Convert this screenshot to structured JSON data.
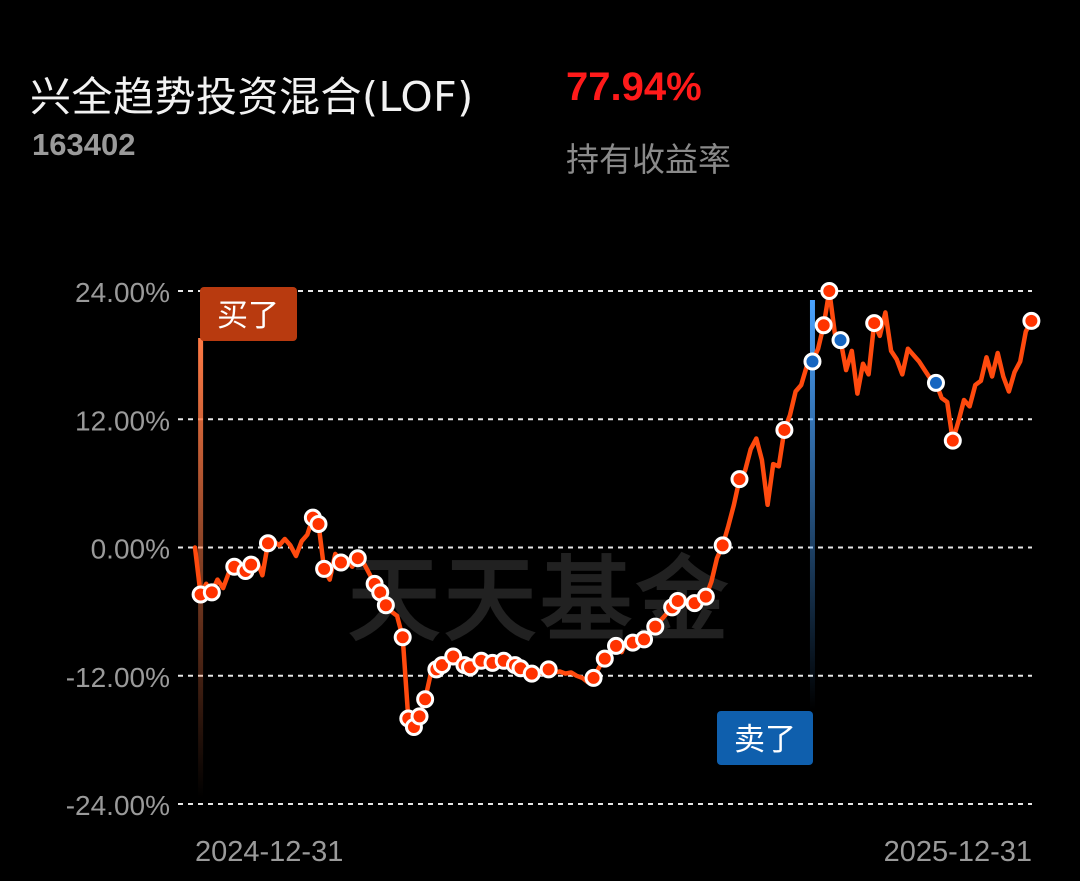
{
  "fund": {
    "name": "兴全趋势投资混合(LOF)",
    "code": "163402",
    "holding_return": "77.94%",
    "holding_return_label": "持有收益率"
  },
  "watermark": "天天基金",
  "markers": {
    "buy_label": "买了",
    "sell_label": "卖了"
  },
  "colors": {
    "line": "#ff4a0e",
    "buy_dot": "#ff3300",
    "sell_dot": "#1565c0",
    "buy_badge": "#b83a0f",
    "sell_badge": "#0f5fad",
    "return_positive": "#ff1a1a"
  },
  "chart_data": {
    "type": "line",
    "x_labels": [
      "2024-12-31",
      "2025-12-31"
    ],
    "y_ticks": [
      "24.00%",
      "12.00%",
      "0.00%",
      "-12.00%",
      "-24.00%"
    ],
    "ylim": [
      -24,
      24
    ],
    "grid": "horizontal-dashed",
    "series": [
      {
        "values": [
          0,
          -4.4,
          -3.4,
          -4.2,
          -3.0,
          -3.8,
          -2.4,
          -1.8,
          -2.4,
          -2.2,
          -1.6,
          -1.2,
          -2.6,
          0.4,
          0.6,
          0.2,
          0.8,
          0.2,
          -0.8,
          0.6,
          1.2,
          2.8,
          2.2,
          -2.0,
          -3.0,
          -0.6,
          -1.4,
          -1.0,
          -1.8,
          -1.0,
          -1.4,
          -2.4,
          -3.4,
          -4.2,
          -5.4,
          -6.0,
          -6.4,
          -8.4,
          -16.0,
          -16.8,
          -15.8,
          -14.2,
          -11.8,
          -11.4,
          -11.0,
          -10.8,
          -10.2,
          -10.6,
          -11.0,
          -11.2,
          -10.8,
          -10.6,
          -10.4,
          -10.8,
          -11.0,
          -10.6,
          -11.2,
          -11.0,
          -11.3,
          -11.6,
          -11.8,
          -11.6,
          -11.8,
          -11.4,
          -11.7,
          -11.6,
          -11.8,
          -11.7,
          -12.0,
          -12.2,
          -12.6,
          -12.2,
          -11.2,
          -10.4,
          -9.8,
          -9.2,
          -9.8,
          -8.6,
          -8.9,
          -8.4,
          -8.6,
          -8.0,
          -7.4,
          -6.8,
          -6.2,
          -5.6,
          -5.0,
          -4.6,
          -5.6,
          -5.2,
          -4.8,
          -4.6,
          -3.2,
          -1.0,
          0.2,
          2.0,
          4.0,
          6.4,
          7.2,
          9.2,
          10.2,
          8.2,
          4.0,
          7.8,
          7.6,
          11.0,
          12.4,
          14.6,
          15.2,
          17.0,
          17.4,
          18.6,
          20.8,
          24.0,
          20.0,
          19.4,
          16.6,
          18.4,
          14.4,
          17.2,
          16.2,
          21.0,
          19.8,
          22.0,
          18.4,
          17.6,
          16.2,
          18.6,
          18.0,
          17.4,
          16.6,
          15.8,
          15.4,
          14.0,
          13.6,
          10.0,
          11.8,
          13.8,
          13.2,
          15.2,
          15.6,
          17.8,
          16.0,
          18.2,
          16.0,
          14.6,
          16.4,
          17.4,
          20.2,
          21.2,
          20.8
        ]
      }
    ],
    "buy_points": [
      1,
      3,
      7,
      9,
      10,
      13,
      21,
      22,
      23,
      26,
      29,
      32,
      33,
      34,
      37,
      38,
      39,
      40,
      41,
      43,
      44,
      46,
      48,
      49,
      51,
      53,
      55,
      57,
      58,
      60,
      63,
      71,
      73,
      75,
      78,
      80,
      82,
      85,
      86,
      89,
      91,
      94,
      97,
      105,
      112,
      113,
      121,
      135,
      149
    ],
    "sell_points": [
      110,
      115,
      132
    ],
    "buy_marker_index": 1,
    "sell_marker_index": 110
  }
}
